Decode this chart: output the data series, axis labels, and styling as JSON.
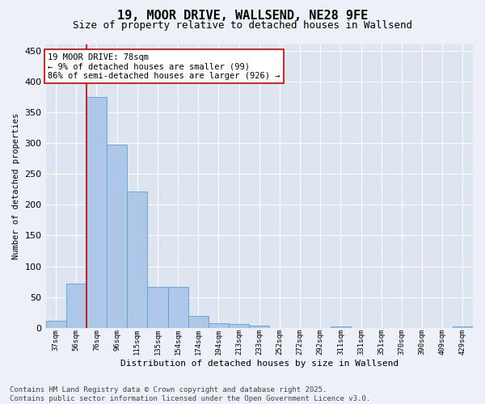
{
  "title": "19, MOOR DRIVE, WALLSEND, NE28 9FE",
  "subtitle": "Size of property relative to detached houses in Wallsend",
  "xlabel": "Distribution of detached houses by size in Wallsend",
  "ylabel": "Number of detached properties",
  "categories": [
    "37sqm",
    "56sqm",
    "76sqm",
    "96sqm",
    "115sqm",
    "135sqm",
    "154sqm",
    "174sqm",
    "194sqm",
    "213sqm",
    "233sqm",
    "252sqm",
    "272sqm",
    "292sqm",
    "311sqm",
    "331sqm",
    "351sqm",
    "370sqm",
    "390sqm",
    "409sqm",
    "429sqm"
  ],
  "values": [
    11,
    72,
    375,
    298,
    222,
    67,
    67,
    20,
    7,
    6,
    4,
    0,
    0,
    0,
    3,
    0,
    0,
    0,
    0,
    0,
    3
  ],
  "bar_color": "#aec6e8",
  "bar_edge_color": "#5a9fd4",
  "background_color": "#dde6f0",
  "grid_color": "#ffffff",
  "annotation_box_text": "19 MOOR DRIVE: 78sqm\n← 9% of detached houses are smaller (99)\n86% of semi-detached houses are larger (926) →",
  "annotation_box_color": "#ffffff",
  "annotation_box_edge_color": "#cc0000",
  "vline_x": 1.5,
  "vline_color": "#cc0000",
  "ylim": [
    0,
    460
  ],
  "yticks": [
    0,
    50,
    100,
    150,
    200,
    250,
    300,
    350,
    400,
    450
  ],
  "fig_bg_color": "#eef0f8",
  "footer_text": "Contains HM Land Registry data © Crown copyright and database right 2025.\nContains public sector information licensed under the Open Government Licence v3.0.",
  "title_fontsize": 11,
  "subtitle_fontsize": 9,
  "annotation_fontsize": 7.5,
  "footer_fontsize": 6.5,
  "ylabel_fontsize": 7.5,
  "xlabel_fontsize": 8,
  "ytick_fontsize": 8,
  "xtick_fontsize": 6.5
}
